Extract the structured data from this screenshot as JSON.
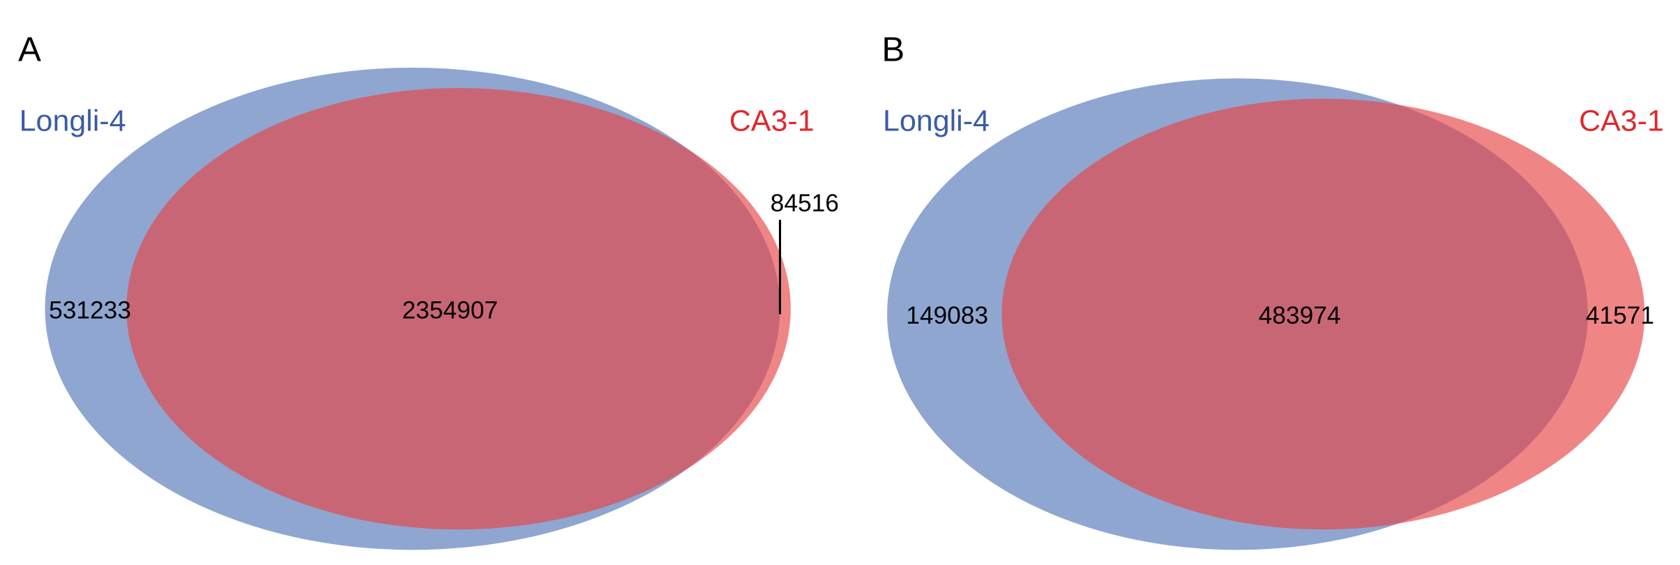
{
  "panels": [
    {
      "label": "A",
      "sets": [
        "Longli-4",
        "CA3-1"
      ],
      "counts": {
        "only_a": "531233",
        "both": "2354907",
        "only_b": "84516"
      }
    },
    {
      "label": "B",
      "sets": [
        "Longli-4",
        "CA3-1"
      ],
      "counts": {
        "only_a": "149083",
        "both": "483974",
        "only_b": "41571"
      }
    }
  ]
}
